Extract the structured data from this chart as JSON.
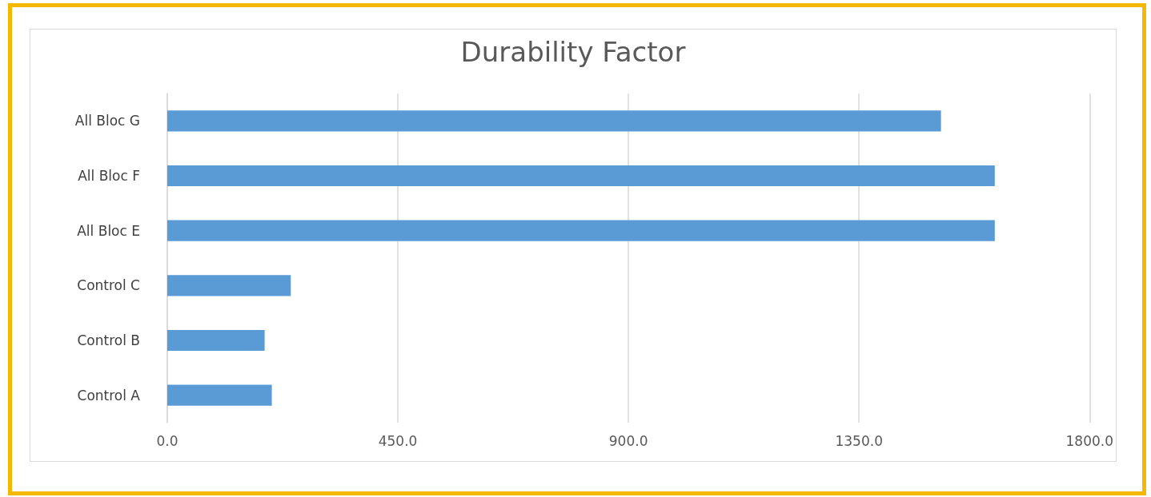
{
  "chart_data": {
    "type": "bar",
    "orientation": "horizontal",
    "title": "Durability Factor",
    "categories": [
      "All Bloc G",
      "All Bloc F",
      "All Bloc E",
      "Control C",
      "Control B",
      "Control A"
    ],
    "values": [
      1510,
      1615,
      1615,
      241,
      190,
      204
    ],
    "color": "#5b9bd5",
    "xlim": [
      0,
      1800
    ],
    "xticks": [
      {
        "value": 0,
        "label": "0.0"
      },
      {
        "value": 450,
        "label": "450.0"
      },
      {
        "value": 900,
        "label": "900.0"
      },
      {
        "value": 1350,
        "label": "1350.0"
      },
      {
        "value": 1800,
        "label": "1800.0"
      }
    ],
    "grid": "x"
  }
}
